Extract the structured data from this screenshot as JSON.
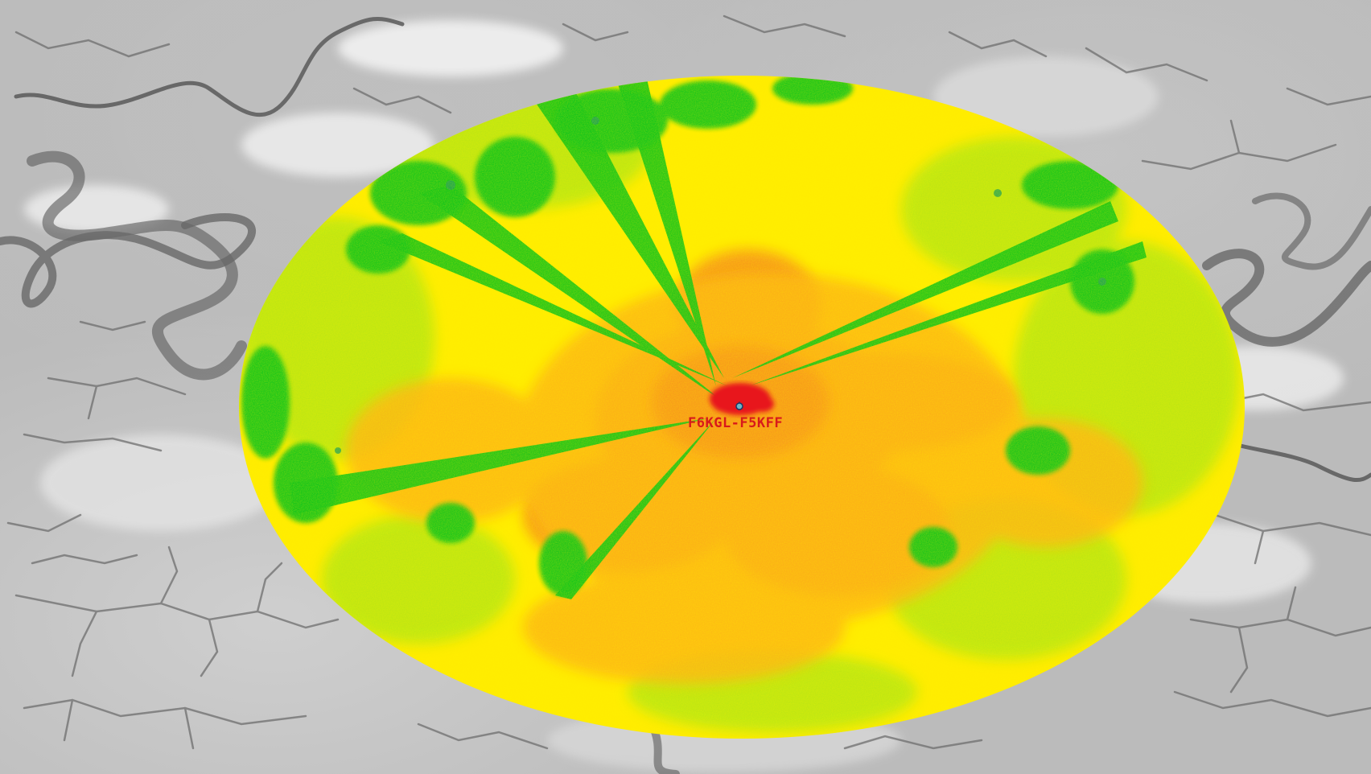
{
  "map": {
    "station_label": "F6KGL-F5KFF",
    "station_marker_icon": "antenna-icon",
    "colors": {
      "terrain_light": "#e6e6e6",
      "terrain_mid": "#b8b8b8",
      "terrain_dark": "#5f5f5f",
      "signal_strongest": "#e8141a",
      "signal_strong": "#f7931e",
      "signal_medium_high": "#fdb515",
      "signal_medium": "#ffec00",
      "signal_medium_low": "#b4e614",
      "signal_low": "#12c41a",
      "signal_lowest": "#1fa05a",
      "station_label": "#d8191b"
    }
  }
}
